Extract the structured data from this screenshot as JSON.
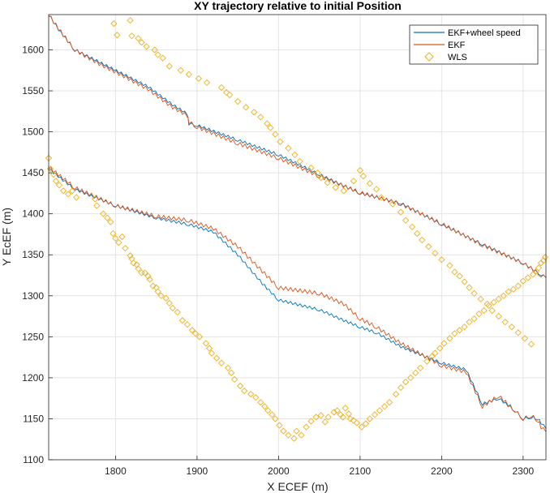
{
  "chart_data": {
    "type": "line",
    "title": "XY trajectory relative to initial Position",
    "xlabel": "X ECEF (m)",
    "ylabel": "Y EcEF (m)",
    "xlim": [
      1718,
      2328
    ],
    "ylim": [
      1100,
      1643
    ],
    "xticks": [
      1800,
      1900,
      2000,
      2100,
      2200,
      2300
    ],
    "yticks": [
      1100,
      1150,
      1200,
      1250,
      1300,
      1350,
      1400,
      1450,
      1500,
      1550,
      1600
    ],
    "grid": true,
    "legend_position": "top-right",
    "colors": {
      "ekf_wheel": "#0072BD",
      "ekf": "#D95319",
      "wls": "#EDB120"
    },
    "series": [
      {
        "name": "EKF+wheel speed",
        "style": "line",
        "x": [
          1718,
          1730,
          1750,
          1780,
          1810,
          1840,
          1870,
          1888,
          1890,
          1900,
          1950,
          2000,
          2050,
          2100,
          2150,
          2200,
          2250,
          2300,
          2322,
          2328,
          1718,
          1750,
          1800,
          1850,
          1890,
          1920,
          1950,
          1980,
          2000,
          2050,
          2080,
          2100,
          2120,
          2150,
          2200,
          2230,
          2250,
          2270,
          2290,
          2300,
          2310,
          2318,
          2322,
          2328
        ],
        "y": [
          1643,
          1625,
          1600,
          1585,
          1570,
          1555,
          1533,
          1522,
          1510,
          1508,
          1490,
          1472,
          1448,
          1425,
          1413,
          1387,
          1363,
          1340,
          1326,
          1322,
          1455,
          1430,
          1410,
          1395,
          1387,
          1378,
          1350,
          1315,
          1295,
          1283,
          1270,
          1262,
          1255,
          1238,
          1218,
          1210,
          1168,
          1175,
          1160,
          1150,
          1152,
          1150,
          1145,
          1138
        ]
      },
      {
        "name": "EKF",
        "style": "line",
        "x": [
          1718,
          1730,
          1750,
          1780,
          1810,
          1840,
          1870,
          1888,
          1890,
          1900,
          1950,
          2000,
          2050,
          2100,
          2150,
          2200,
          2250,
          2300,
          2322,
          2328,
          1718,
          1750,
          1800,
          1850,
          1890,
          1920,
          1950,
          1980,
          2000,
          2050,
          2080,
          2100,
          2120,
          2150,
          2200,
          2230,
          2250,
          2270,
          2290,
          2300,
          2310,
          2318,
          2322,
          2328
        ],
        "y": [
          1643,
          1626,
          1600,
          1583,
          1568,
          1552,
          1530,
          1520,
          1512,
          1506,
          1486,
          1468,
          1446,
          1426,
          1412,
          1388,
          1362,
          1340,
          1325,
          1322,
          1457,
          1432,
          1410,
          1397,
          1392,
          1382,
          1360,
          1330,
          1310,
          1303,
          1290,
          1272,
          1262,
          1242,
          1215,
          1207,
          1165,
          1178,
          1160,
          1150,
          1154,
          1148,
          1140,
          1134
        ]
      },
      {
        "name": "WLS",
        "style": "marker",
        "x": [
          1718,
          1720,
          1724,
          1727,
          1731,
          1736,
          1742,
          1747,
          1752,
          1775,
          1777,
          1785,
          1790,
          1794,
          1797,
          1800,
          1804,
          1808,
          1812,
          1818,
          1820,
          1822,
          1826,
          1828,
          1832,
          1836,
          1840,
          1842,
          1846,
          1850,
          1852,
          1856,
          1862,
          1866,
          1870,
          1876,
          1882,
          1888,
          1894,
          1898,
          1903,
          1911,
          1915,
          1918,
          1924,
          1930,
          1938,
          1942,
          1946,
          1953,
          1958,
          1966,
          1972,
          1978,
          1983,
          1987,
          1992,
          1996,
          2001,
          2006,
          2012,
          2019,
          2022,
          2028,
          2034,
          2040,
          2046,
          2052,
          2057,
          2061,
          2068,
          2072,
          2076,
          2079,
          2082,
          2086,
          2088,
          2092,
          2096,
          2102,
          2107,
          2112,
          2118,
          2124,
          2130,
          2136,
          2144,
          2150,
          2156,
          2162,
          2168,
          2174,
          2182,
          2188,
          2192,
          2198,
          2203,
          2210,
          2216,
          2222,
          2228,
          2234,
          2240,
          2246,
          2252,
          2258,
          2264,
          2270,
          2276,
          2282,
          2288,
          2294,
          2300,
          2306,
          2312,
          2316,
          2319,
          2322,
          2325,
          2327,
          1798,
          1802,
          1818,
          1820,
          1828,
          1832,
          1838,
          1848,
          1852,
          1858,
          1866,
          1880,
          1890,
          1902,
          1912,
          1930,
          1936,
          1940,
          1950,
          1960,
          1970,
          1978,
          1986,
          1990,
          1996,
          2002,
          2012,
          2020,
          2026,
          2040,
          2048,
          2052,
          2060,
          2070,
          2080,
          2092,
          2100,
          2104,
          2112,
          2120,
          2126,
          2140,
          2150,
          2156,
          2164,
          2170,
          2176,
          2184,
          2192,
          2200,
          2210,
          2216,
          2222,
          2228,
          2234,
          2240,
          2248,
          2256,
          2262,
          2270,
          2278,
          2286,
          2294,
          2302,
          2310
        ],
        "y": [
          1468,
          1455,
          1448,
          1440,
          1435,
          1428,
          1424,
          1428,
          1420,
          1418,
          1410,
          1400,
          1395,
          1390,
          1376,
          1370,
          1365,
          1372,
          1358,
          1349,
          1345,
          1340,
          1338,
          1333,
          1328,
          1328,
          1324,
          1320,
          1312,
          1310,
          1305,
          1300,
          1297,
          1291,
          1285,
          1280,
          1270,
          1265,
          1258,
          1254,
          1250,
          1242,
          1236,
          1230,
          1224,
          1218,
          1212,
          1206,
          1198,
          1190,
          1184,
          1180,
          1176,
          1170,
          1165,
          1160,
          1155,
          1150,
          1142,
          1135,
          1130,
          1126,
          1135,
          1130,
          1140,
          1147,
          1152,
          1154,
          1146,
          1152,
          1158,
          1160,
          1155,
          1152,
          1163,
          1156,
          1150,
          1148,
          1145,
          1140,
          1144,
          1150,
          1155,
          1160,
          1165,
          1170,
          1180,
          1188,
          1195,
          1200,
          1206,
          1212,
          1220,
          1226,
          1230,
          1236,
          1242,
          1248,
          1254,
          1258,
          1262,
          1268,
          1272,
          1278,
          1282,
          1288,
          1292,
          1296,
          1300,
          1305,
          1308,
          1312,
          1318,
          1322,
          1326,
          1330,
          1334,
          1340,
          1343,
          1347,
          1632,
          1618,
          1636,
          1617,
          1614,
          1609,
          1604,
          1600,
          1594,
          1590,
          1580,
          1575,
          1570,
          1565,
          1560,
          1554,
          1548,
          1545,
          1537,
          1530,
          1524,
          1518,
          1510,
          1505,
          1497,
          1488,
          1480,
          1472,
          1464,
          1456,
          1450,
          1444,
          1438,
          1432,
          1428,
          1440,
          1453,
          1446,
          1437,
          1430,
          1420,
          1412,
          1402,
          1392,
          1384,
          1376,
          1368,
          1360,
          1352,
          1344,
          1337,
          1329,
          1324,
          1317,
          1310,
          1303,
          1296,
          1290,
          1282,
          1275,
          1268,
          1262,
          1255,
          1248,
          1241
        ]
      }
    ]
  }
}
